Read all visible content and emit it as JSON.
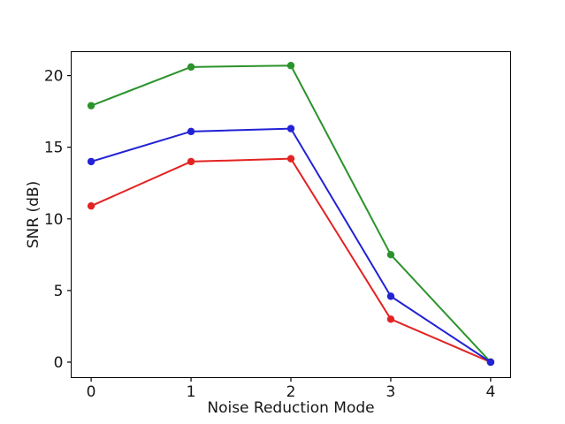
{
  "figure": {
    "background": "#ffffff",
    "spine_color": "#000000",
    "text_color": "#161616"
  },
  "chart_data": {
    "type": "line",
    "title": "",
    "xlabel": "Noise Reduction Mode",
    "ylabel": "SNR (dB)",
    "x": [
      0,
      1,
      2,
      3,
      4
    ],
    "xtick_labels": [
      "0",
      "1",
      "2",
      "3",
      "4"
    ],
    "ytick_labels": [
      "0",
      "5",
      "10",
      "15",
      "20"
    ],
    "xticks": [
      0,
      1,
      2,
      3,
      4
    ],
    "yticks": [
      0,
      5,
      10,
      15,
      20
    ],
    "xlim": [
      -0.2,
      4.2
    ],
    "ylim": [
      -1.08,
      21.67
    ],
    "grid": false,
    "legend": "none",
    "marker": "circle",
    "series": [
      {
        "name": "red-series",
        "color": "#e32222",
        "values": [
          10.9,
          14.0,
          14.2,
          3.0,
          0.0
        ]
      },
      {
        "name": "green-series",
        "color": "#2b932b",
        "values": [
          17.9,
          20.6,
          20.7,
          7.5,
          0.0
        ]
      },
      {
        "name": "blue-series",
        "color": "#2222d6",
        "values": [
          14.0,
          16.1,
          16.3,
          4.6,
          0.0
        ]
      }
    ]
  }
}
